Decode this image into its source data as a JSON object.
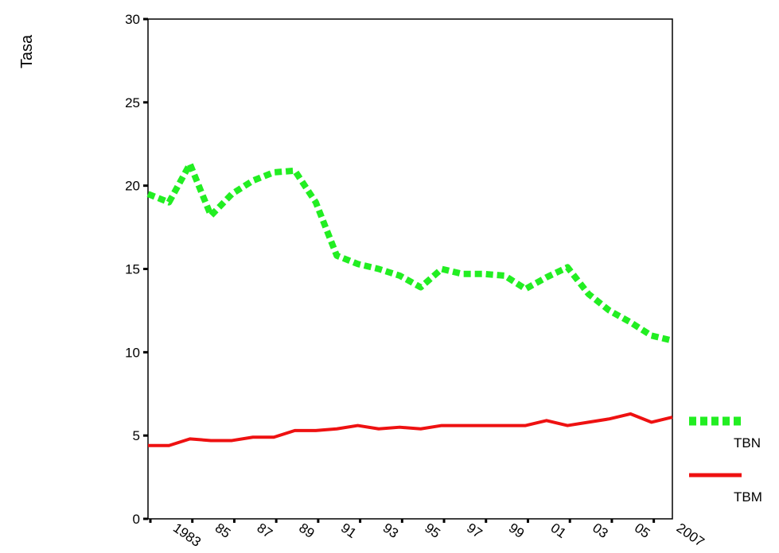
{
  "chart_data": {
    "type": "line",
    "y_label": "Tasa",
    "categories": [
      null,
      "1983",
      null,
      "85",
      null,
      "87",
      null,
      "89",
      null,
      "91",
      null,
      "93",
      null,
      "95",
      null,
      "97",
      null,
      "99",
      null,
      "01",
      null,
      "03",
      null,
      "05",
      null,
      "2007"
    ],
    "series": [
      {
        "name": "TBN",
        "color": "#22ee22",
        "dash": true,
        "values": [
          19.5,
          19,
          21.3,
          18.2,
          19.5,
          20.3,
          20.8,
          20.9,
          19,
          15.8,
          15.3,
          15,
          14.6,
          13.9,
          15,
          14.7,
          14.7,
          14.6,
          13.8,
          14.5,
          15.1,
          13.5,
          12.5,
          11.8,
          11,
          10.7
        ]
      },
      {
        "name": "TBM",
        "color": "#ee1111",
        "dash": false,
        "values": [
          4.4,
          4.4,
          4.8,
          4.7,
          4.7,
          4.9,
          4.9,
          5.3,
          5.3,
          5.4,
          5.6,
          5.4,
          5.5,
          5.4,
          5.6,
          5.6,
          5.6,
          5.6,
          5.6,
          5.9,
          5.6,
          5.8,
          6.0,
          6.3,
          5.8,
          6.1
        ]
      }
    ],
    "ylim": [
      0,
      30
    ],
    "yticks": [
      0,
      5,
      10,
      15,
      20,
      25,
      30
    ]
  }
}
